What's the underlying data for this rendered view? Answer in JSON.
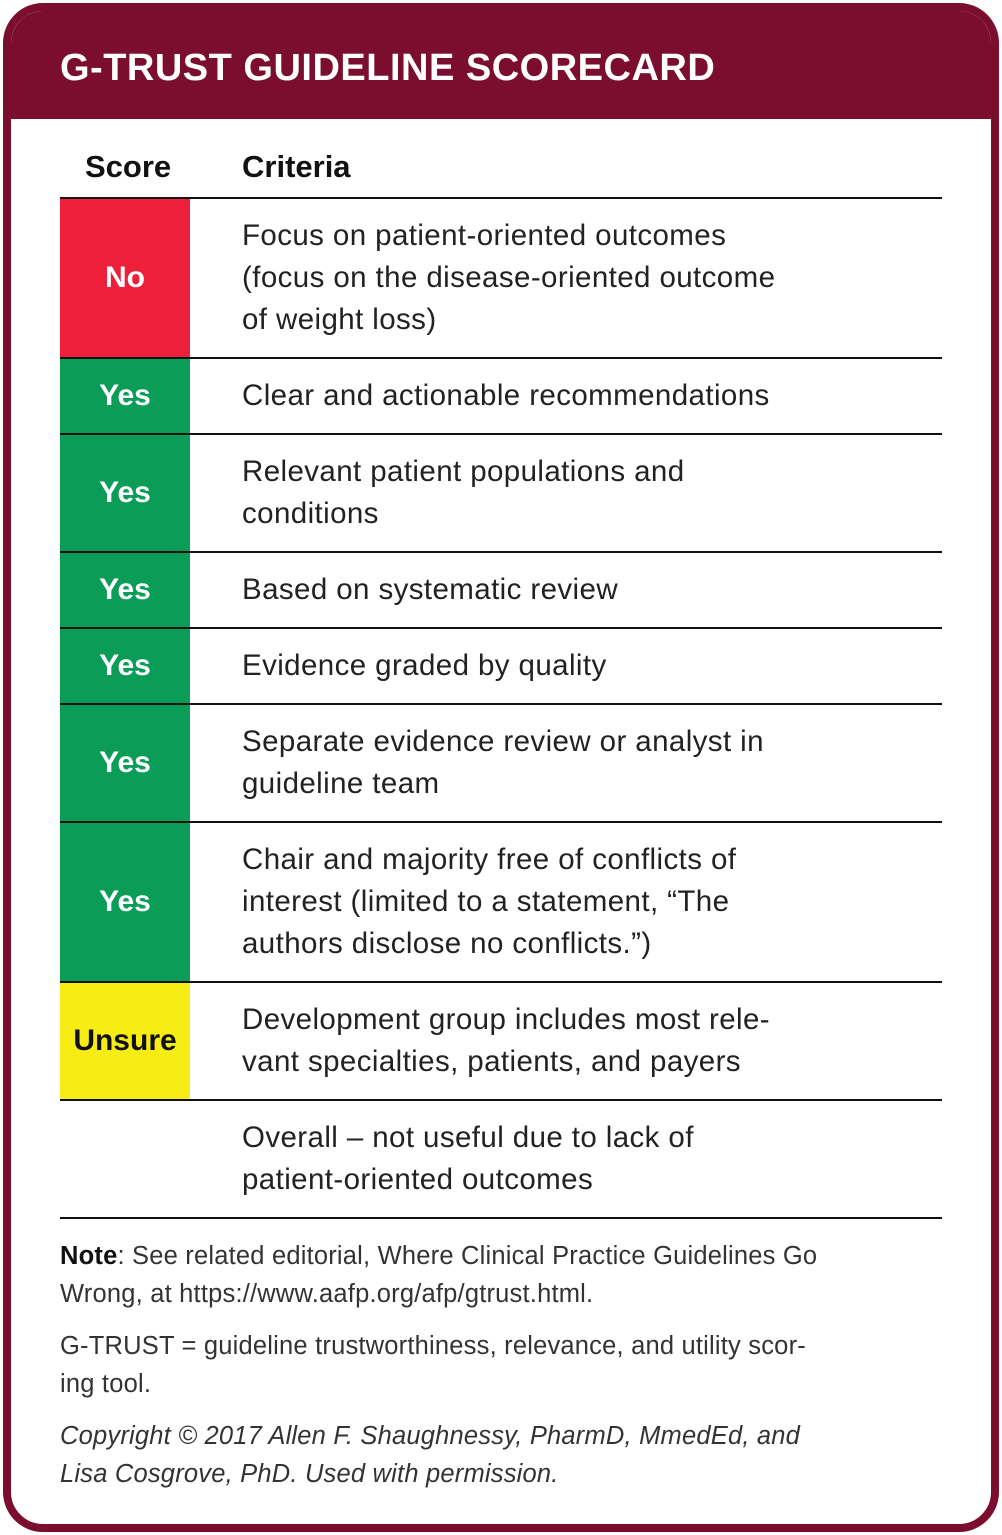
{
  "header": {
    "title": "G-TRUST GUIDELINE SCORECARD"
  },
  "table": {
    "columns": [
      "Score",
      "Criteria"
    ],
    "rows": [
      {
        "score": "No",
        "color": "#ee1f3b",
        "criteria": [
          "Focus on patient-oriented outcomes",
          "(focus on the disease-oriented outcome",
          "of weight loss)"
        ]
      },
      {
        "score": "Yes",
        "color": "#0b9d58",
        "criteria": [
          "Clear and actionable recommendations"
        ]
      },
      {
        "score": "Yes",
        "color": "#0b9d58",
        "criteria": [
          "Relevant patient populations and",
          "conditions"
        ]
      },
      {
        "score": "Yes",
        "color": "#0b9d58",
        "criteria": [
          "Based on systematic review"
        ]
      },
      {
        "score": "Yes",
        "color": "#0b9d58",
        "criteria": [
          "Evidence graded by quality"
        ]
      },
      {
        "score": "Yes",
        "color": "#0b9d58",
        "criteria": [
          "Separate evidence review or analyst in",
          "guideline team"
        ]
      },
      {
        "score": "Yes",
        "color": "#0b9d58",
        "criteria": [
          "Chair and majority free of conflicts of",
          "interest (limited to a statement, “The",
          "authors disclose no conflicts.”)"
        ]
      },
      {
        "score": "Unsure",
        "color": "#f7ec13",
        "criteria": [
          "Development group includes most rele-",
          "vant specialties, patients, and payers"
        ]
      },
      {
        "score": null,
        "color": null,
        "criteria": [
          "Overall – not useful due to lack of",
          "patient-oriented outcomes"
        ]
      }
    ]
  },
  "notes": [
    {
      "label": "Note",
      "lines": [
        ": See related editorial, Where Clinical Practice Guidelines Go",
        "Wrong, at https://www.aafp.org/afp/gtrust.html."
      ]
    },
    {
      "lines": [
        "G-TRUST = guideline trustworthiness, relevance, and utility scor-",
        "ing tool."
      ]
    },
    {
      "italic": true,
      "lines": [
        "Copyright © 2017 Allen F. Shaughnessy, PharmD, MmedEd, and",
        "Lisa Cosgrove, PhD. Used with permission."
      ]
    }
  ]
}
